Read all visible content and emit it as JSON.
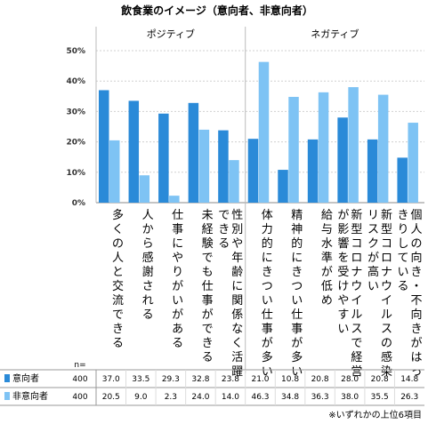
{
  "chart_data": {
    "type": "bar",
    "title": "飲食業のイメージ（意向者、非意向者）",
    "groups": [
      {
        "label": "ポジティブ",
        "count": 5
      },
      {
        "label": "ネガティブ",
        "count": 5
      }
    ],
    "categories": [
      "多くの人と交流できる",
      "人から感謝される",
      "仕事にやりがいがある",
      "未経験でも仕事ができる",
      "性別や年齢に関係なく活躍できる",
      "体力的にきつい仕事が多い",
      "精神的にきつい仕事が多い",
      "給与水準が低め",
      "新型コロナウイルスで経営が影響を受けやすい",
      "新型コロナウイルスの感染リスクが高い",
      "個人の向き・不向きがはっきりしている"
    ],
    "series": [
      {
        "name": "意向者",
        "n": "400",
        "color": "#2a8ad8",
        "values": [
          37.0,
          33.5,
          29.3,
          32.8,
          23.8,
          21.0,
          10.8,
          20.8,
          28.0,
          20.8,
          14.8
        ]
      },
      {
        "name": "非意向者",
        "n": "400",
        "color": "#7ec3f4",
        "values": [
          20.5,
          9.0,
          2.3,
          24.0,
          14.0,
          46.3,
          34.8,
          36.3,
          38.0,
          35.5,
          26.3
        ]
      }
    ],
    "yticks": [
      "0%",
      "10%",
      "20%",
      "30%",
      "40%",
      "50%"
    ],
    "ylim": [
      0,
      50
    ],
    "n_label": "n=",
    "footnote": "※いずれかの上位6項目"
  }
}
